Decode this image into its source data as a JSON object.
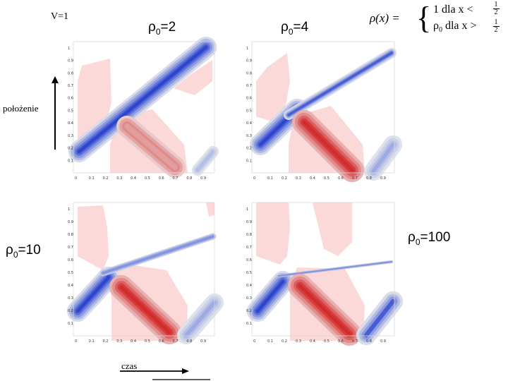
{
  "header": {
    "v_label": "V=1",
    "formula": {
      "lhs": "ρ(x) =",
      "case1": "1 dla x <",
      "case2_rho": "ρ",
      "case2_sub": "0",
      "case2_rest": " dla x >",
      "frac_num": "1",
      "frac_den": "2"
    }
  },
  "axes": {
    "y_label": "położenie",
    "x_label": "czas"
  },
  "panels": [
    {
      "rho": "ρ",
      "sub": "0",
      "value": "=2"
    },
    {
      "rho": "ρ",
      "sub": "0",
      "value": "=4"
    },
    {
      "rho": "ρ",
      "sub": "0",
      "value": "=10"
    },
    {
      "rho": "ρ",
      "sub": "0",
      "value": "=100"
    }
  ],
  "ticks": {
    "x": [
      "0",
      "0.1",
      "0.2",
      "0.3",
      "0.4",
      "0.5",
      "0.6",
      "0.7",
      "0.8",
      "0.9"
    ],
    "y": [
      "0.1",
      "0.2",
      "0.3",
      "0.4",
      "0.5",
      "0.6",
      "0.7",
      "0.8",
      "0.9",
      "1"
    ]
  },
  "colors": {
    "blue": "#1f3fe0",
    "red": "#e41a1a",
    "pale_red": "#fcd9d9",
    "pale_blue": "#dce2fb"
  }
}
